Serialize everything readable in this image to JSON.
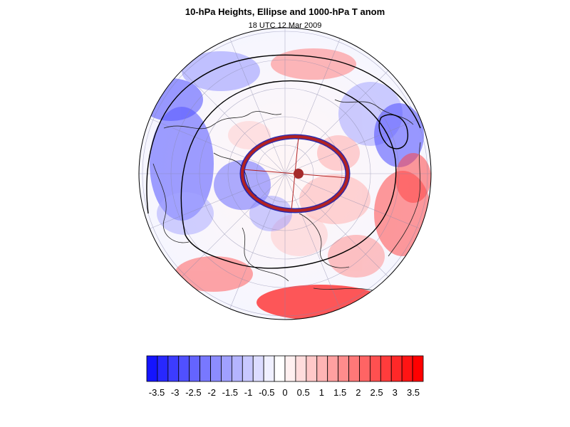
{
  "title": "10-hPa Heights, Ellipse and 1000-hPa T anom",
  "subtitle": "18 UTC 12 Mar 2009",
  "colorbar": {
    "colors": [
      "#1414ff",
      "#2828ff",
      "#3c3cff",
      "#5050ff",
      "#6464ff",
      "#7878ff",
      "#8c8cff",
      "#a0a0ff",
      "#b4b4ff",
      "#c8c8ff",
      "#dcdcff",
      "#f0f0ff",
      "#ffffff",
      "#fff0f0",
      "#ffdcdc",
      "#ffc8c8",
      "#ffb4b4",
      "#ffa0a0",
      "#ff8c8c",
      "#ff7878",
      "#ff6464",
      "#ff5050",
      "#ff3c3c",
      "#ff2828",
      "#ff1414",
      "#ff0000"
    ],
    "labels": [
      "-3.5",
      "-3",
      "-2.5",
      "-2",
      "-1.5",
      "-1",
      "-0.5",
      "0",
      "0.5",
      "1",
      "1.5",
      "2",
      "2.5",
      "3",
      "3.5"
    ]
  },
  "map_features": {
    "ellipse_color": "#b22222",
    "ellipse_edge_color": "#0a0aa0",
    "center_marker_color": "#a52a2a",
    "contour_color": "#000000"
  }
}
